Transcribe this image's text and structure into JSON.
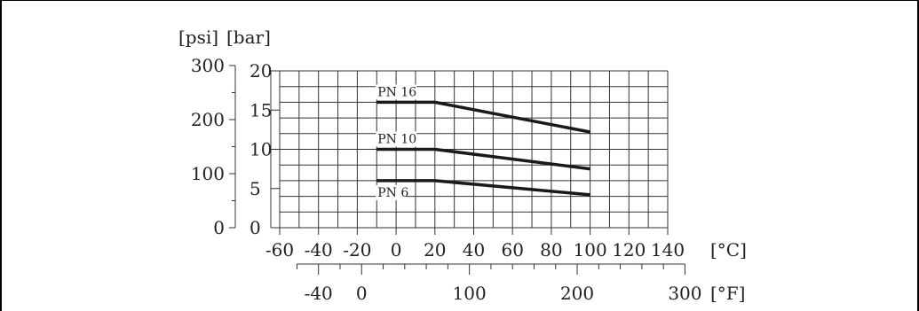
{
  "chart_data": {
    "type": "line",
    "x_unit_primary": "[°C]",
    "x_unit_secondary": "[°F]",
    "y_unit_primary": "[bar]",
    "y_unit_secondary": "[psi]",
    "xlim": [
      -60,
      140
    ],
    "ylim": [
      0,
      20
    ],
    "x_ticks_c": [
      -60,
      -40,
      -20,
      0,
      20,
      40,
      60,
      80,
      100,
      120,
      140
    ],
    "x_tick_labels_c": [
      "-60",
      "-40",
      "-20",
      "0",
      "20",
      "40",
      "60",
      "80",
      "100",
      "120",
      "140"
    ],
    "x_ticks_f": [
      -40,
      0,
      100,
      200,
      300
    ],
    "x_tick_labels_f": [
      "-40",
      "0",
      "100",
      "200",
      "300"
    ],
    "x_minor_ticks_f": [
      -60,
      -20,
      20,
      40,
      60,
      80,
      120,
      140,
      160,
      180,
      220,
      240,
      260,
      280
    ],
    "y_ticks_bar": [
      0,
      5,
      10,
      15,
      20
    ],
    "y_tick_labels_bar": [
      "0",
      "5",
      "10",
      "15",
      "20"
    ],
    "y_ticks_psi": [
      0,
      100,
      200,
      300
    ],
    "y_tick_labels_psi": [
      "0",
      "100",
      "200",
      "300"
    ],
    "grid": true,
    "grid_x_step": 10,
    "grid_y_step": 2,
    "series": [
      {
        "name": "PN 16",
        "x": [
          -10,
          20,
          100
        ],
        "y": [
          16,
          16,
          12.2
        ]
      },
      {
        "name": "PN 10",
        "x": [
          -10,
          20,
          100
        ],
        "y": [
          10,
          10,
          7.5
        ]
      },
      {
        "name": "PN 6",
        "x": [
          -10,
          20,
          100
        ],
        "y": [
          6,
          6,
          4.2
        ]
      }
    ]
  }
}
